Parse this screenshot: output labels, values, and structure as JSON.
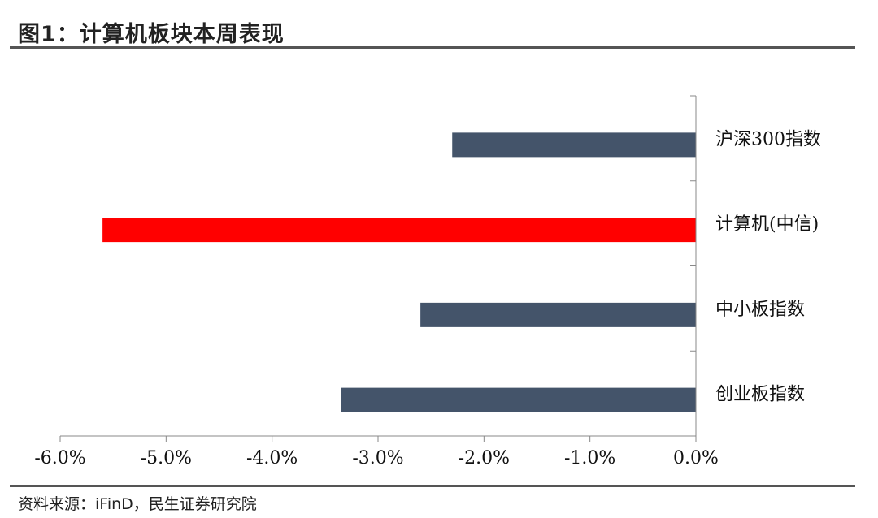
{
  "header": {
    "title": "图1：计算机板块本周表现"
  },
  "footer": {
    "source": "资料来源：iFinD，民生证券研究院"
  },
  "chart_data": {
    "type": "bar",
    "orientation": "horizontal",
    "categories": [
      "沪深300指数",
      "计算机(中信)",
      "中小板指数",
      "创业板指数"
    ],
    "values": [
      -2.3,
      -5.6,
      -2.6,
      -3.35
    ],
    "colors": [
      "#44546a",
      "#ff0000",
      "#44546a",
      "#44546a"
    ],
    "xlim": [
      -6.0,
      0.0
    ],
    "xticks": [
      -6.0,
      -5.0,
      -4.0,
      -3.0,
      -2.0,
      -1.0,
      0.0
    ],
    "xtick_labels": [
      "-6.0%",
      "-5.0%",
      "-4.0%",
      "-3.0%",
      "-2.0%",
      "-1.0%",
      "0.0%"
    ],
    "category_axis_position": "right",
    "grid": false,
    "legend": false
  }
}
